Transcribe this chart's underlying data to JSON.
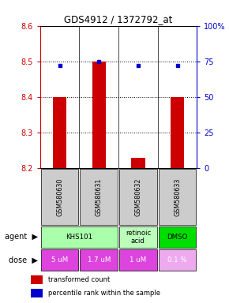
{
  "title": "GDS4912 / 1372792_at",
  "samples": [
    "GSM580630",
    "GSM580631",
    "GSM580632",
    "GSM580633"
  ],
  "red_values": [
    8.4,
    8.5,
    8.23,
    8.4
  ],
  "blue_values": [
    72,
    75,
    72,
    72
  ],
  "ylim_left": [
    8.2,
    8.6
  ],
  "ylim_right": [
    0,
    100
  ],
  "yticks_left": [
    8.2,
    8.3,
    8.4,
    8.5,
    8.6
  ],
  "yticks_right": [
    0,
    25,
    50,
    75,
    100
  ],
  "yticklabels_right": [
    "0",
    "25",
    "50",
    "75",
    "100%"
  ],
  "grid_lines": [
    8.3,
    8.4,
    8.5
  ],
  "agents": [
    {
      "label": "KHS101",
      "span": [
        0,
        2
      ],
      "color": "#aaffaa"
    },
    {
      "label": "retinoic\nacid",
      "span": [
        2,
        3
      ],
      "color": "#bbffbb"
    },
    {
      "label": "DMSO",
      "span": [
        3,
        4
      ],
      "color": "#00dd00"
    }
  ],
  "doses": [
    {
      "label": "5 uM",
      "span": [
        0,
        1
      ],
      "color": "#dd44dd"
    },
    {
      "label": "1.7 uM",
      "span": [
        1,
        2
      ],
      "color": "#dd44dd"
    },
    {
      "label": "1 uM",
      "span": [
        2,
        3
      ],
      "color": "#dd44dd"
    },
    {
      "label": "0.1 %",
      "span": [
        3,
        4
      ],
      "color": "#eeaaee"
    }
  ],
  "bar_color": "#cc0000",
  "dot_color": "#0000cc",
  "bar_width": 0.35,
  "left_axis_color": "#cc0000",
  "right_axis_color": "#0000cc",
  "legend_red": "transformed count",
  "legend_blue": "percentile rank within the sample",
  "sample_bg_color": "#cccccc"
}
